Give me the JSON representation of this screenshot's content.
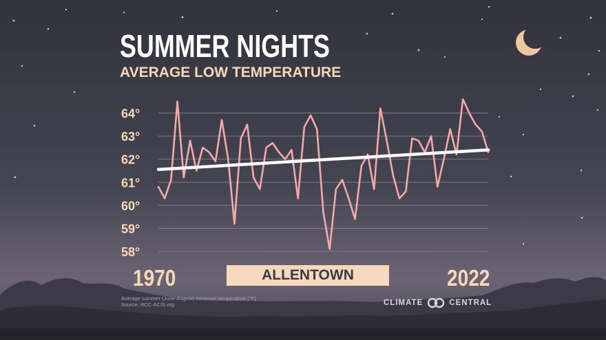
{
  "header": {
    "title": "SUMMER NIGHTS",
    "subtitle": "AVERAGE LOW TEMPERATURE"
  },
  "location": "ALLENTOWN",
  "footnote": {
    "line1": "Average summer (June-August) minimum temperature (°F)",
    "line2": "Source: RCC-ACIS.org"
  },
  "brand": {
    "left": "CLIMATE",
    "right": "CENTRAL",
    "logo_icon": "climate-central-logo"
  },
  "colors": {
    "background": "#3c3c47",
    "series": "#f4a9aa",
    "trend": "#ffffff",
    "accent": "#f7d9b8",
    "grid": "#8a8a94"
  },
  "chart_data": {
    "type": "line",
    "title": "SUMMER NIGHTS",
    "xlabel": "",
    "ylabel": "",
    "xlim": [
      1970,
      2022
    ],
    "ylim": [
      58,
      64
    ],
    "x_tick_labels": [
      "1970",
      "2022"
    ],
    "y_ticks": [
      {
        "value": 58,
        "label": "58°"
      },
      {
        "value": 59,
        "label": "59°"
      },
      {
        "value": 60,
        "label": "60°"
      },
      {
        "value": 61,
        "label": "61°"
      },
      {
        "value": 62,
        "label": "62°"
      },
      {
        "value": 63,
        "label": "63°"
      },
      {
        "value": 64,
        "label": "64°"
      }
    ],
    "grid": true,
    "legend": "none",
    "series": [
      {
        "x": [
          1970,
          1971,
          1972,
          1973,
          1974,
          1975,
          1976,
          1977,
          1978,
          1979,
          1980,
          1981,
          1982,
          1983,
          1984,
          1985,
          1986,
          1987,
          1988,
          1989,
          1990,
          1991,
          1992,
          1993,
          1994,
          1995,
          1996,
          1997,
          1998,
          1999,
          2000,
          2001,
          2002,
          2003,
          2004,
          2005,
          2006,
          2007,
          2008,
          2009,
          2010,
          2011,
          2012,
          2013,
          2014,
          2015,
          2016,
          2017,
          2018,
          2019,
          2020,
          2021,
          2022
        ],
        "values": [
          60.8,
          60.3,
          61.1,
          64.5,
          61.2,
          62.8,
          61.5,
          62.5,
          62.3,
          61.9,
          63.7,
          62.0,
          59.2,
          62.9,
          63.5,
          61.2,
          60.7,
          62.5,
          62.7,
          62.3,
          62.0,
          62.4,
          60.3,
          63.4,
          63.9,
          63.3,
          59.7,
          58.1,
          60.7,
          61.1,
          60.3,
          59.4,
          61.7,
          62.2,
          60.7,
          64.2,
          62.8,
          61.3,
          60.3,
          60.6,
          62.9,
          62.8,
          62.3,
          63.0,
          60.8,
          62.0,
          63.3,
          62.2,
          64.6,
          64.0,
          63.5,
          63.2,
          62.3
        ]
      },
      {
        "name": "trend",
        "x": [
          1970,
          2022
        ],
        "values": [
          61.55,
          62.4
        ]
      }
    ]
  }
}
